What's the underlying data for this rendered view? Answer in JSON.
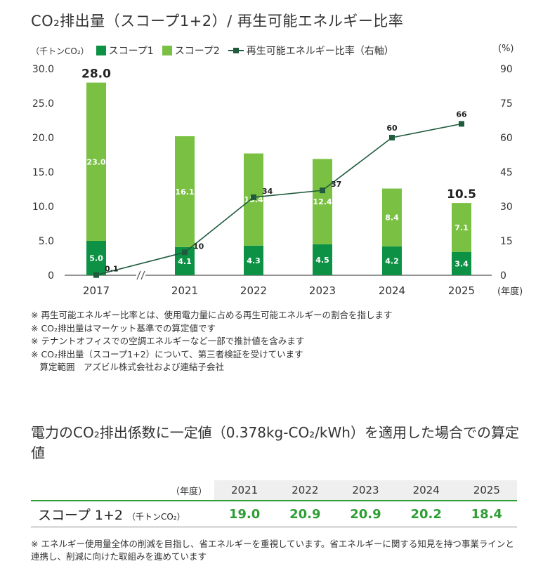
{
  "title": "CO₂排出量（スコープ1+2）/ 再生可能エネルギー比率",
  "legend": {
    "unit_left": "（千トンCO₂）",
    "scope1": "スコープ1",
    "scope2": "スコープ2",
    "line": "再生可能エネルギー比率（右軸）",
    "unit_right": "(%)"
  },
  "colors": {
    "scope1": "#0d9245",
    "scope2": "#7ac143",
    "line": "#1f5b3c",
    "accent": "#2e9e34"
  },
  "chart_data": {
    "type": "bar",
    "stacked": true,
    "categories": [
      "2017",
      "2021",
      "2022",
      "2023",
      "2024",
      "2025"
    ],
    "series": [
      {
        "name": "スコープ1",
        "values": [
          5.0,
          4.1,
          4.3,
          4.5,
          4.2,
          3.4
        ]
      },
      {
        "name": "スコープ2",
        "values": [
          23.0,
          16.1,
          13.4,
          12.4,
          8.4,
          7.1
        ]
      }
    ],
    "totals_labeled": {
      "2017": "28.0",
      "2025": "10.5"
    },
    "line_series": {
      "name": "再生可能エネルギー比率（右軸）",
      "values": [
        0.1,
        10,
        34,
        37,
        60,
        66
      ]
    },
    "ylim": [
      0,
      30
    ],
    "y_ticks": [
      "0",
      "5.0",
      "10.0",
      "15.0",
      "20.0",
      "25.0",
      "30.0"
    ],
    "y2lim": [
      0,
      90
    ],
    "y2_ticks": [
      "0",
      "15",
      "30",
      "45",
      "60",
      "75",
      "90"
    ],
    "xlabel": "(年度)",
    "axis_break_between": [
      "2017",
      "2021"
    ],
    "grid": false
  },
  "notes": [
    "※ 再生可能エネルギー比率とは、使用電力量に占める再生可能エネルギーの割合を指します",
    "※ CO₂排出量はマーケット基準での算定値です",
    "※ テナントオフィスでの空調エネルギーなど一部で推計値を含みます",
    "※ CO₂排出量（スコープ1+2）について、第三者検証を受けています",
    "　算定範囲　アズビル株式会社および連結子会社"
  ],
  "subtitle": "電力のCO₂排出係数に一定値（0.378kg-CO₂/kWh）を適用した場合での算定値",
  "table": {
    "year_header": "（年度）",
    "years": [
      "2021",
      "2022",
      "2023",
      "2024",
      "2025"
    ],
    "row_label": "スコープ 1+2",
    "row_unit": "（千トンCO₂）",
    "values": [
      "19.0",
      "20.9",
      "20.9",
      "20.2",
      "18.4"
    ]
  },
  "footnote": "※ エネルギー使用量全体の削減を目指し、省エネルギーを重視しています。省エネルギーに関する知見を持つ事業ラインと連携し、削減に向けた取組みを進めています"
}
